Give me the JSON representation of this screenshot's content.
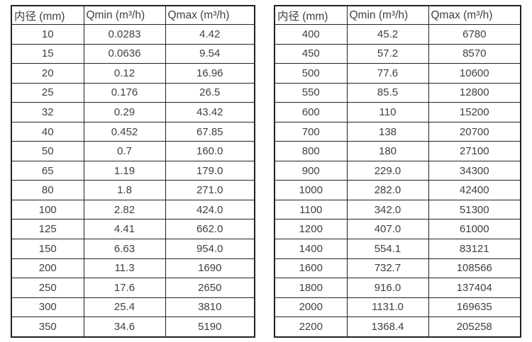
{
  "tables": [
    {
      "name": "flow-rate-table-small-diameters",
      "headers": [
        "内径 (mm)",
        "Qmin (m³/h)",
        "Qmax (m³/h)"
      ],
      "rows": [
        [
          "10",
          "0.0283",
          "4.42"
        ],
        [
          "15",
          "0.0636",
          "9.54"
        ],
        [
          "20",
          "0.12",
          "16.96"
        ],
        [
          "25",
          "0.176",
          "26.5"
        ],
        [
          "32",
          "0.29",
          "43.42"
        ],
        [
          "40",
          "0.452",
          "67.85"
        ],
        [
          "50",
          "0.7",
          "160.0"
        ],
        [
          "65",
          "1.19",
          "179.0"
        ],
        [
          "80",
          "1.8",
          "271.0"
        ],
        [
          "100",
          "2.82",
          "424.0"
        ],
        [
          "125",
          "4.41",
          "662.0"
        ],
        [
          "150",
          "6.63",
          "954.0"
        ],
        [
          "200",
          "11.3",
          "1690"
        ],
        [
          "250",
          "17.6",
          "2650"
        ],
        [
          "300",
          "25.4",
          "3810"
        ],
        [
          "350",
          "34.6",
          "5190"
        ]
      ]
    },
    {
      "name": "flow-rate-table-large-diameters",
      "headers": [
        "内径 (mm)",
        "Qmin (m³/h)",
        "Qmax (m³/h)"
      ],
      "rows": [
        [
          "400",
          "45.2",
          "6780"
        ],
        [
          "450",
          "57.2",
          "8570"
        ],
        [
          "500",
          "77.6",
          "10600"
        ],
        [
          "550",
          "85.5",
          "12800"
        ],
        [
          "600",
          "110",
          "15200"
        ],
        [
          "700",
          "138",
          "20700"
        ],
        [
          "800",
          "180",
          "27100"
        ],
        [
          "900",
          "229.0",
          "34300"
        ],
        [
          "1000",
          "282.0",
          "42400"
        ],
        [
          "1100",
          "342.0",
          "51300"
        ],
        [
          "1200",
          "407.0",
          "61000"
        ],
        [
          "1400",
          "554.1",
          "83121"
        ],
        [
          "1600",
          "732.7",
          "108566"
        ],
        [
          "1800",
          "916.0",
          "137404"
        ],
        [
          "2000",
          "1131.0",
          "169635"
        ],
        [
          "2200",
          "1368.4",
          "205258"
        ]
      ]
    }
  ],
  "colors": {
    "border": "#222222",
    "text": "#404040",
    "background": "#ffffff"
  }
}
